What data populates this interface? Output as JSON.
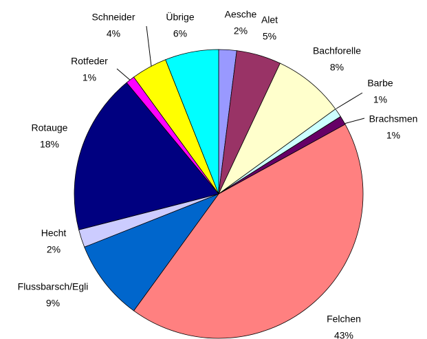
{
  "chart_data": {
    "type": "pie",
    "categories": [
      "Aesche",
      "Alet",
      "Bachforelle",
      "Barbe",
      "Brachsmen",
      "Felchen",
      "Flussbarsch/Egli",
      "Hecht",
      "Rotauge",
      "Rotfeder",
      "Schneider",
      "Übrige"
    ],
    "values": [
      2,
      5,
      8,
      1,
      1,
      43,
      9,
      2,
      18,
      1,
      4,
      6
    ],
    "value_labels": [
      "2%",
      "5%",
      "8%",
      "1%",
      "1%",
      "43%",
      "9%",
      "2%",
      "18%",
      "1%",
      "4%",
      "6%"
    ],
    "colors": [
      "#9999ff",
      "#993366",
      "#ffffcc",
      "#ccffff",
      "#660066",
      "#ff8080",
      "#0066cc",
      "#ccccff",
      "#000080",
      "#ff00ff",
      "#ffff00",
      "#00ffff"
    ]
  }
}
